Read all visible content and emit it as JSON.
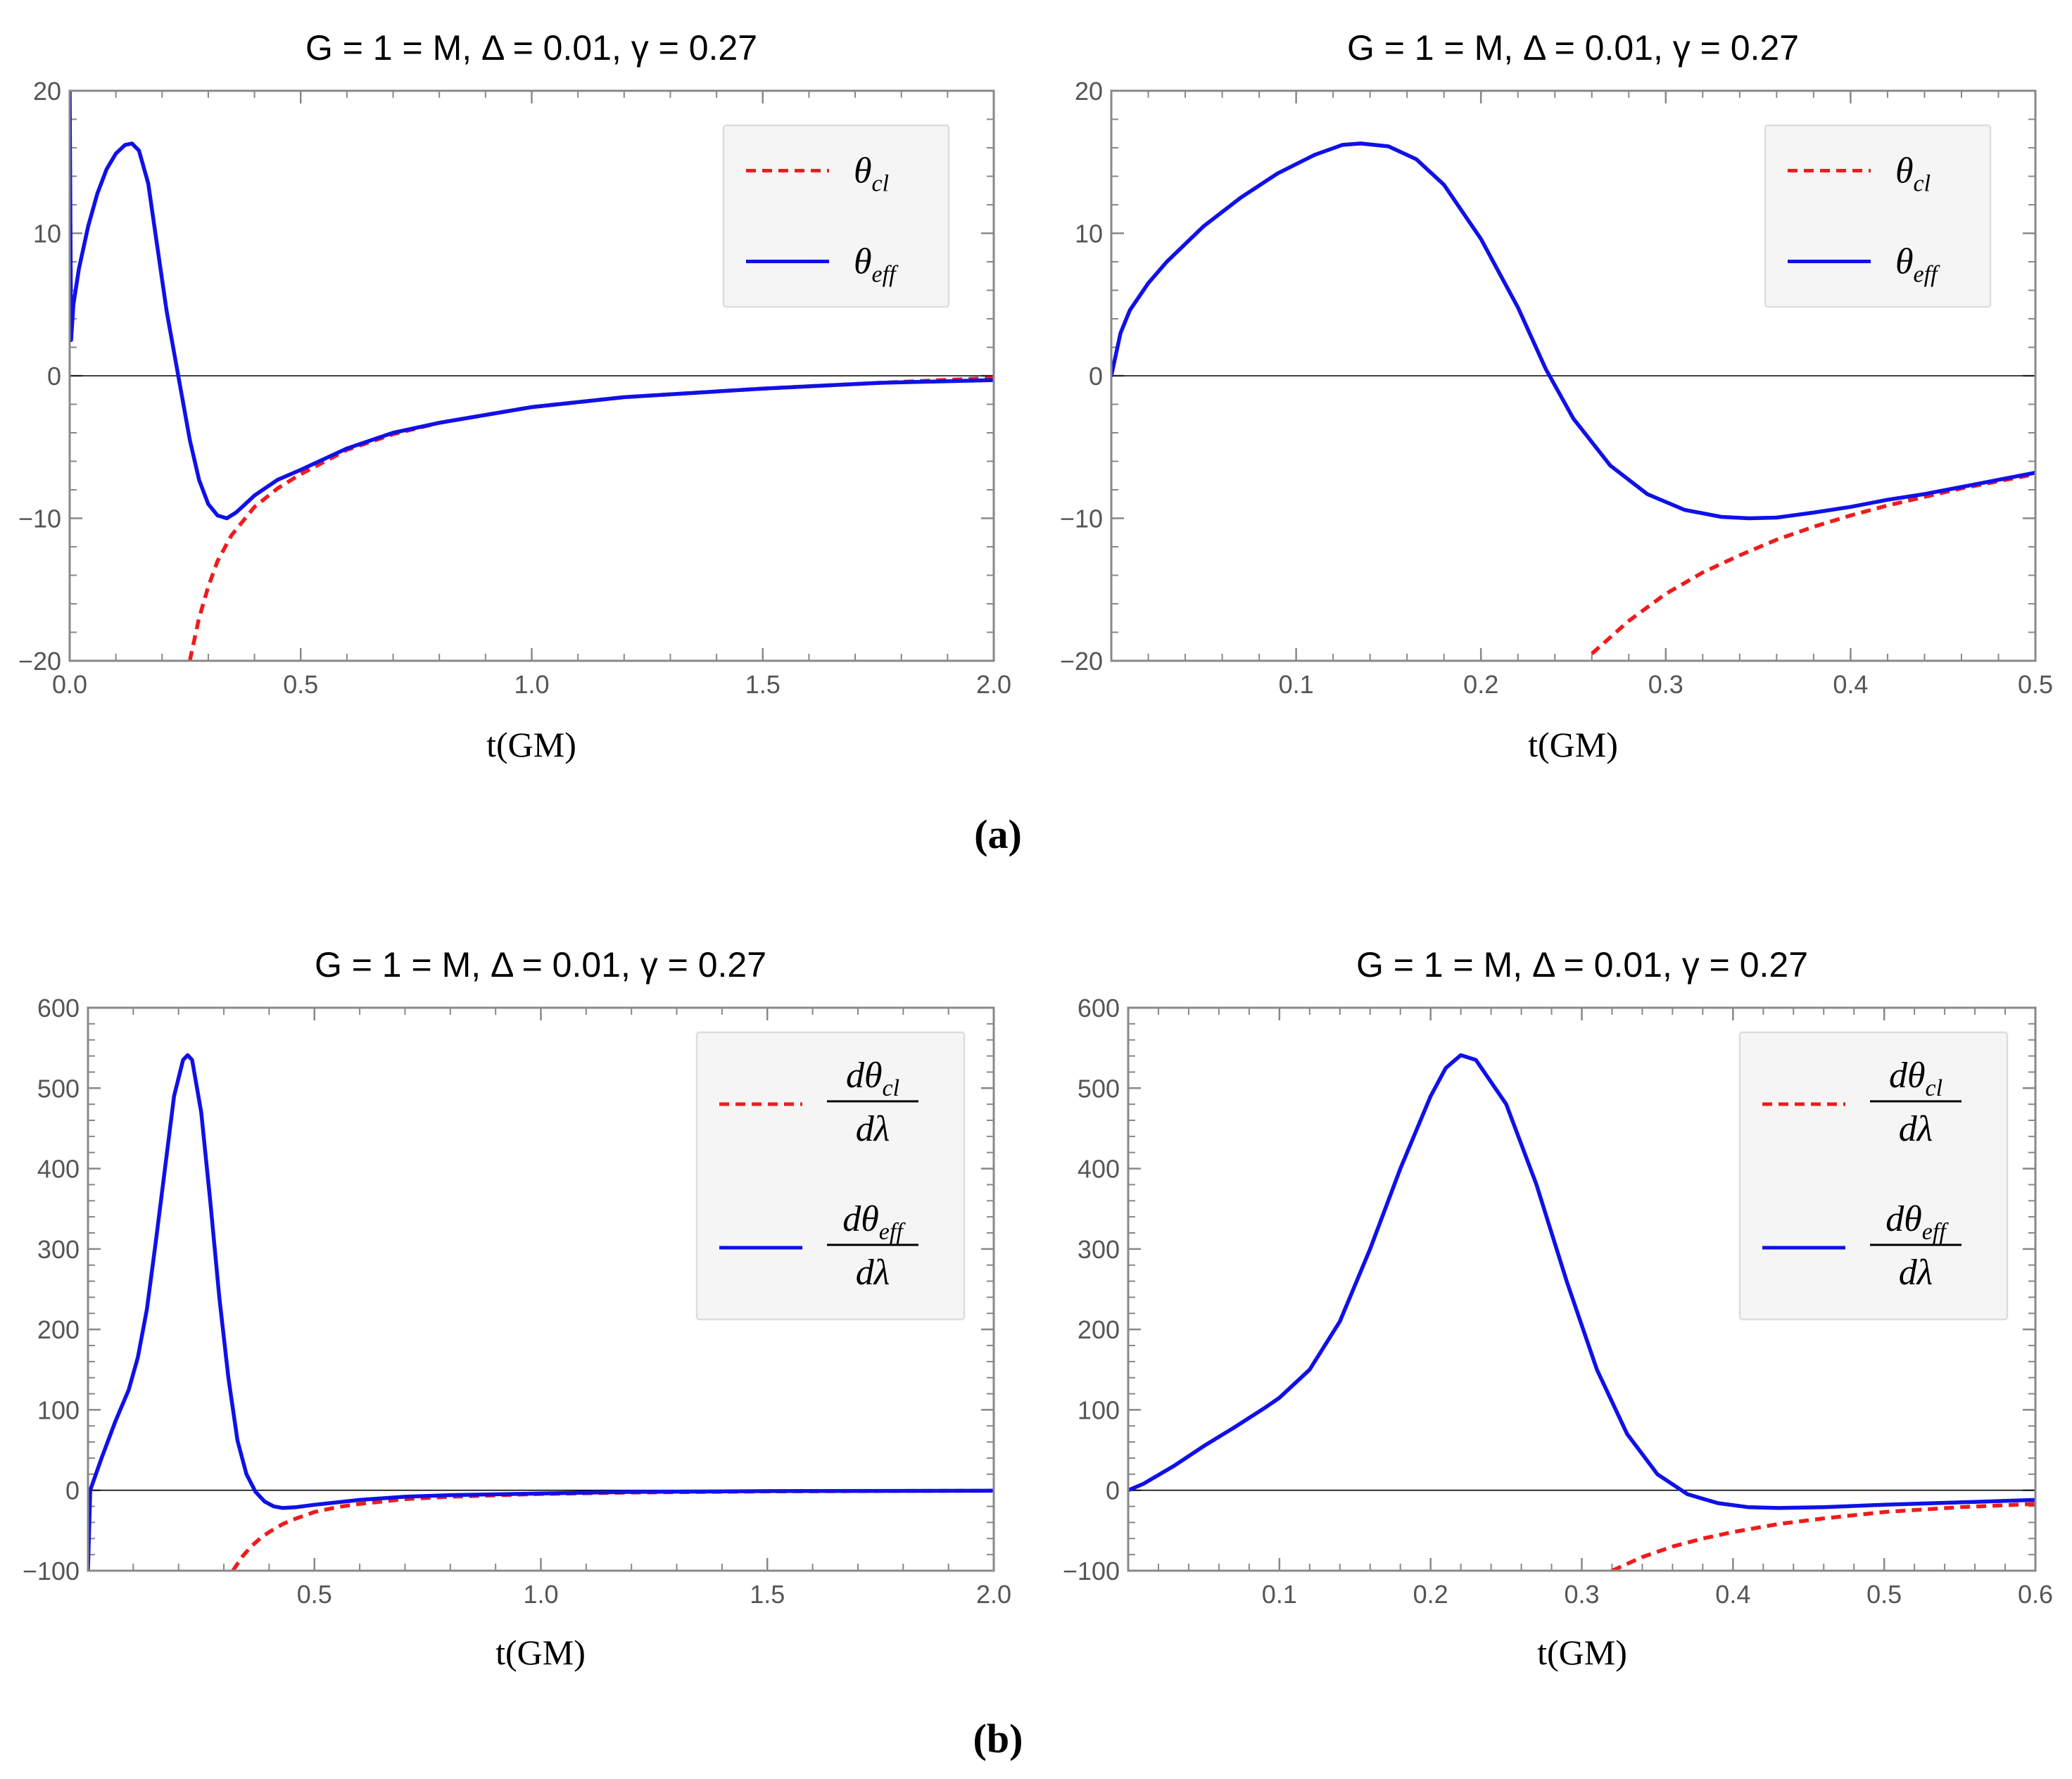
{
  "panel_labels": {
    "a": "(a)",
    "b": "(b)"
  },
  "colors": {
    "classical": "#ee1c1c",
    "effective": "#1010e8",
    "axis": "#555555",
    "frame": "#888888",
    "zero_line": "#000000"
  },
  "legends": {
    "theta": [
      {
        "name": "θ",
        "sub": "cl",
        "style": "dashed"
      },
      {
        "name": "θ",
        "sub": "eff",
        "style": "solid"
      }
    ],
    "dtheta": [
      {
        "num": "dθ",
        "sub": "cl",
        "den": "dλ",
        "style": "dashed"
      },
      {
        "num": "dθ",
        "sub": "eff",
        "den": "dλ",
        "style": "solid"
      }
    ]
  },
  "chart_data": [
    {
      "id": "a-left",
      "type": "line",
      "title": "G = 1 = M, Δ = 0.01, γ = 0.27",
      "xlabel": "t(GM)",
      "ylabel": "",
      "xlim": [
        0,
        2
      ],
      "ylim": [
        -20,
        20
      ],
      "xticks": [
        "0.0",
        "0.5",
        "1.0",
        "1.5",
        "2.0"
      ],
      "yticks": [
        "20",
        "10",
        "0",
        "−10",
        "−20"
      ],
      "legend": "theta",
      "series": [
        {
          "name": "θ_cl",
          "style": "dashed",
          "x": [
            0.26,
            0.28,
            0.3,
            0.32,
            0.35,
            0.4,
            0.45,
            0.5,
            0.6,
            0.7,
            0.8,
            1.0,
            1.2,
            1.5,
            1.75,
            2.0
          ],
          "y": [
            -20,
            -17.0,
            -14.8,
            -13.0,
            -11.2,
            -9.2,
            -7.9,
            -6.9,
            -5.2,
            -4.1,
            -3.3,
            -2.2,
            -1.5,
            -0.9,
            -0.5,
            -0.15
          ]
        },
        {
          "name": "θ_eff",
          "style": "solid",
          "x": [
            0.0,
            0.003,
            0.008,
            0.02,
            0.04,
            0.06,
            0.08,
            0.1,
            0.12,
            0.135,
            0.15,
            0.17,
            0.19,
            0.21,
            0.235,
            0.26,
            0.28,
            0.3,
            0.32,
            0.34,
            0.36,
            0.38,
            0.4,
            0.45,
            0.5,
            0.6,
            0.7,
            0.8,
            1.0,
            1.2,
            1.5,
            1.75,
            2.0
          ],
          "y": [
            20,
            2.5,
            5.0,
            7.5,
            10.5,
            12.8,
            14.5,
            15.6,
            16.2,
            16.3,
            15.8,
            13.5,
            9.0,
            4.5,
            0.0,
            -4.5,
            -7.3,
            -9.0,
            -9.8,
            -10.0,
            -9.6,
            -9.0,
            -8.4,
            -7.3,
            -6.6,
            -5.1,
            -4.0,
            -3.3,
            -2.2,
            -1.5,
            -0.9,
            -0.5,
            -0.3
          ]
        }
      ]
    },
    {
      "id": "a-right",
      "type": "line",
      "title": "G = 1 = M, Δ = 0.01, γ = 0.27",
      "xlabel": "t(GM)",
      "ylabel": "",
      "xlim": [
        0,
        0.5
      ],
      "ylim": [
        -20,
        20
      ],
      "xticks": [
        "0.1",
        "0.2",
        "0.3",
        "0.4",
        "0.5"
      ],
      "yticks": [
        "20",
        "10",
        "0",
        "−10",
        "−20"
      ],
      "legend": "theta",
      "series": [
        {
          "name": "θ_cl",
          "style": "dashed",
          "x": [
            0.26,
            0.28,
            0.3,
            0.32,
            0.34,
            0.36,
            0.38,
            0.4,
            0.42,
            0.44,
            0.46,
            0.48,
            0.5
          ],
          "y": [
            -19.5,
            -17.2,
            -15.3,
            -13.8,
            -12.6,
            -11.5,
            -10.6,
            -9.8,
            -9.1,
            -8.5,
            -7.9,
            -7.4,
            -6.9
          ]
        },
        {
          "name": "θ_eff",
          "style": "solid",
          "x": [
            0.0,
            0.005,
            0.01,
            0.02,
            0.03,
            0.05,
            0.07,
            0.09,
            0.11,
            0.125,
            0.135,
            0.15,
            0.165,
            0.18,
            0.2,
            0.22,
            0.235,
            0.25,
            0.27,
            0.29,
            0.31,
            0.33,
            0.345,
            0.36,
            0.38,
            0.4,
            0.42,
            0.44,
            0.46,
            0.48,
            0.5
          ],
          "y": [
            0.0,
            3.0,
            4.6,
            6.5,
            8.0,
            10.5,
            12.5,
            14.2,
            15.5,
            16.2,
            16.3,
            16.1,
            15.2,
            13.4,
            9.6,
            4.8,
            0.5,
            -3.0,
            -6.3,
            -8.3,
            -9.4,
            -9.9,
            -10.0,
            -9.95,
            -9.6,
            -9.2,
            -8.7,
            -8.3,
            -7.8,
            -7.3,
            -6.8
          ]
        }
      ]
    },
    {
      "id": "b-left",
      "type": "line",
      "title": "G = 1 = M, Δ = 0.01, γ = 0.27",
      "xlabel": "t(GM)",
      "ylabel": "",
      "xlim": [
        0,
        2
      ],
      "ylim": [
        -100,
        600
      ],
      "xticks": [
        "0.5",
        "1.0",
        "1.5",
        "2.0"
      ],
      "yticks": [
        "600",
        "500",
        "400",
        "300",
        "200",
        "100",
        "0",
        "−100"
      ],
      "legend": "dtheta",
      "series": [
        {
          "name": "dθ_cl/dλ",
          "style": "dashed",
          "x": [
            0.32,
            0.34,
            0.36,
            0.38,
            0.4,
            0.43,
            0.46,
            0.5,
            0.55,
            0.6,
            0.7,
            0.8,
            1.0,
            1.2,
            1.5,
            2.0
          ],
          "y": [
            -100,
            -83,
            -70,
            -60,
            -52,
            -42,
            -35,
            -27,
            -21,
            -17,
            -11,
            -8,
            -4.5,
            -2.8,
            -1.4,
            -0.5
          ]
        },
        {
          "name": "dθ_eff/dλ",
          "style": "solid",
          "x": [
            0.0,
            0.005,
            0.03,
            0.06,
            0.09,
            0.11,
            0.13,
            0.15,
            0.17,
            0.19,
            0.21,
            0.22,
            0.23,
            0.25,
            0.27,
            0.29,
            0.31,
            0.33,
            0.35,
            0.37,
            0.39,
            0.41,
            0.43,
            0.46,
            0.5,
            0.55,
            0.6,
            0.7,
            0.8,
            1.0,
            1.2,
            1.5,
            2.0
          ],
          "y": [
            -100,
            0,
            40,
            85,
            125,
            165,
            225,
            310,
            400,
            490,
            535,
            541,
            535,
            470,
            360,
            240,
            140,
            62,
            20,
            -2,
            -14,
            -20,
            -22,
            -21,
            -18,
            -15,
            -12,
            -8,
            -6,
            -4,
            -2,
            -1,
            -0.5
          ]
        }
      ]
    },
    {
      "id": "b-right",
      "type": "line",
      "title": "G = 1 = M, Δ = 0.01, γ = 0.27",
      "xlabel": "t(GM)",
      "ylabel": "",
      "xlim": [
        0,
        0.6
      ],
      "ylim": [
        -100,
        600
      ],
      "xticks": [
        "0.1",
        "0.2",
        "0.3",
        "0.4",
        "0.5",
        "0.6"
      ],
      "yticks": [
        "600",
        "500",
        "400",
        "300",
        "200",
        "100",
        "0",
        "−100"
      ],
      "legend": "dtheta",
      "series": [
        {
          "name": "dθ_cl/dλ",
          "style": "dashed",
          "x": [
            0.32,
            0.34,
            0.36,
            0.38,
            0.4,
            0.43,
            0.46,
            0.5,
            0.55,
            0.6
          ],
          "y": [
            -100,
            -83,
            -70,
            -60,
            -52,
            -42,
            -35,
            -27,
            -21,
            -17
          ]
        },
        {
          "name": "dθ_eff/dλ",
          "style": "solid",
          "x": [
            0.0,
            0.01,
            0.03,
            0.05,
            0.07,
            0.09,
            0.1,
            0.12,
            0.14,
            0.16,
            0.18,
            0.2,
            0.21,
            0.22,
            0.23,
            0.25,
            0.27,
            0.29,
            0.31,
            0.33,
            0.35,
            0.37,
            0.39,
            0.41,
            0.43,
            0.46,
            0.5,
            0.55,
            0.6
          ],
          "y": [
            0,
            8,
            30,
            55,
            78,
            102,
            115,
            150,
            210,
            300,
            400,
            490,
            525,
            541,
            535,
            480,
            380,
            260,
            150,
            70,
            20,
            -5,
            -16,
            -21,
            -22,
            -21,
            -18,
            -15,
            -12
          ]
        }
      ]
    }
  ]
}
